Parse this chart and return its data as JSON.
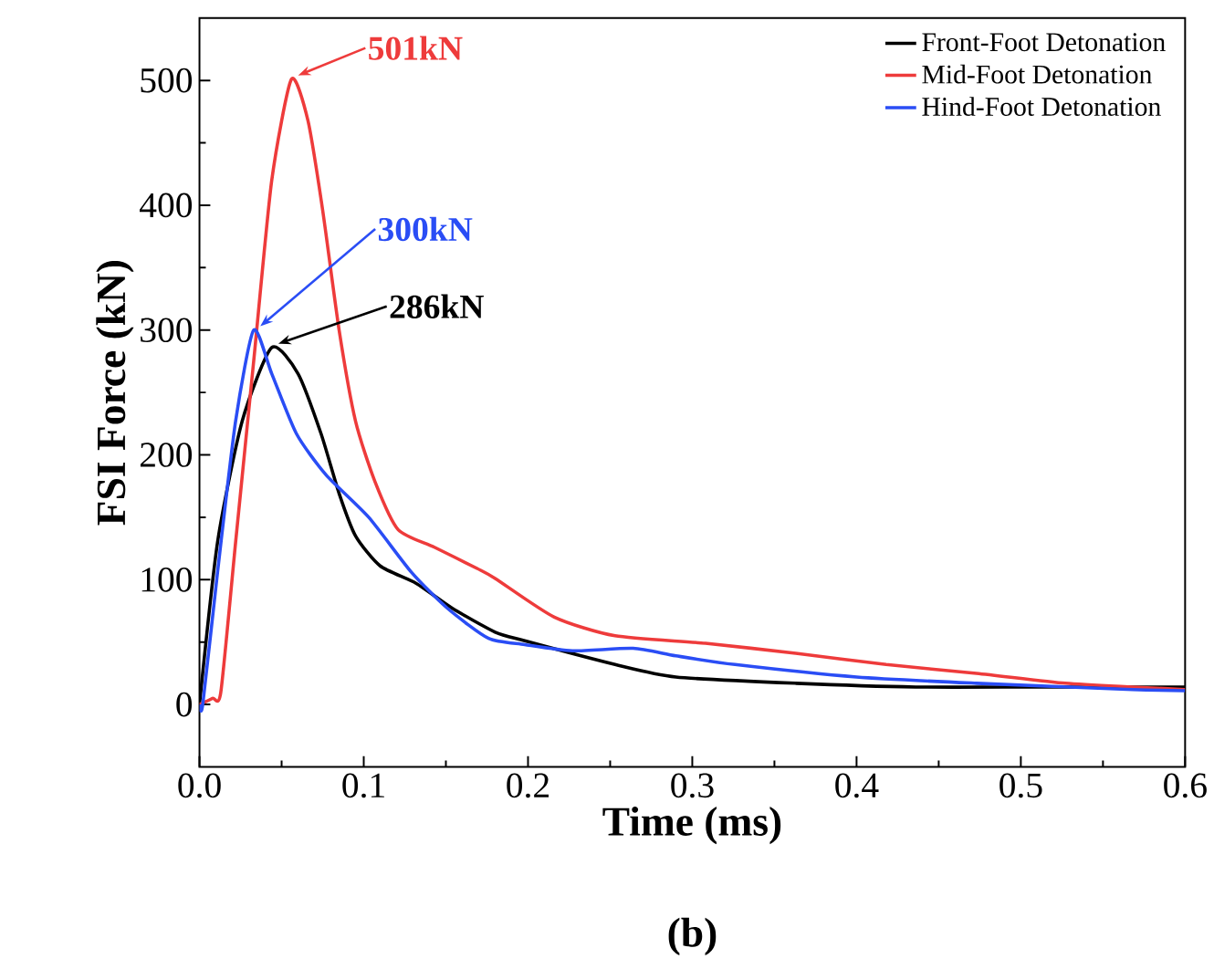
{
  "chart_data": {
    "type": "line",
    "xlabel": "Time (ms)",
    "ylabel": "FSI Force (kN)",
    "xlim": [
      0,
      0.6
    ],
    "ylim": [
      -50,
      550
    ],
    "xticks": [
      {
        "value": 0,
        "label": "0.0"
      },
      0.1,
      0.2,
      0.3,
      0.4,
      0.5,
      0.6
    ],
    "yticks": [
      0,
      100,
      200,
      300,
      400,
      500
    ],
    "legend": "top right",
    "grid": false,
    "line_style": "solid",
    "marker": "none",
    "series": [
      {
        "name": "Front-Foot Detonation",
        "color": "#000000",
        "x": [
          0,
          0.011,
          0.026,
          0.044,
          0.06,
          0.074,
          0.085,
          0.095,
          0.11,
          0.132,
          0.154,
          0.18,
          0.198,
          0.253,
          0.29,
          0.363,
          0.436,
          0.51,
          0.6
        ],
        "values": [
          0,
          130,
          227,
          286,
          265,
          217,
          169,
          135,
          111,
          97,
          77,
          58,
          51,
          32,
          22,
          17,
          14,
          14,
          14
        ]
      },
      {
        "name": "Mid-Foot Detonation",
        "color": "#ee3b3b",
        "x": [
          0,
          0.008,
          0.013,
          0.022,
          0.033,
          0.044,
          0.056,
          0.066,
          0.075,
          0.085,
          0.095,
          0.107,
          0.121,
          0.143,
          0.169,
          0.18,
          0.216,
          0.253,
          0.308,
          0.363,
          0.418,
          0.473,
          0.527,
          0.568,
          0.6
        ],
        "values": [
          0,
          5,
          10,
          130,
          275,
          420,
          501,
          468,
          396,
          300,
          227,
          178,
          140,
          126,
          109,
          101,
          70,
          55,
          49,
          41,
          32,
          25,
          17,
          14,
          12
        ]
      },
      {
        "name": "Hind-Foot Detonation",
        "color": "#2a4df5",
        "x": [
          0,
          0.002,
          0.011,
          0.022,
          0.033,
          0.044,
          0.059,
          0.077,
          0.103,
          0.129,
          0.151,
          0.176,
          0.198,
          0.227,
          0.264,
          0.29,
          0.326,
          0.4,
          0.473,
          0.568,
          0.6
        ],
        "values": [
          0,
          0,
          106,
          227,
          300,
          265,
          217,
          184,
          150,
          106,
          77,
          53,
          48,
          43,
          45,
          39,
          32,
          22,
          17,
          12,
          11
        ]
      }
    ],
    "annotations": [
      {
        "text": "286kN",
        "x": 0.044,
        "y": 286
      },
      {
        "text": "501kN",
        "x": 0.056,
        "y": 501
      },
      {
        "text": "300kN",
        "x": 0.033,
        "y": 300
      },
      "(b)"
    ]
  }
}
